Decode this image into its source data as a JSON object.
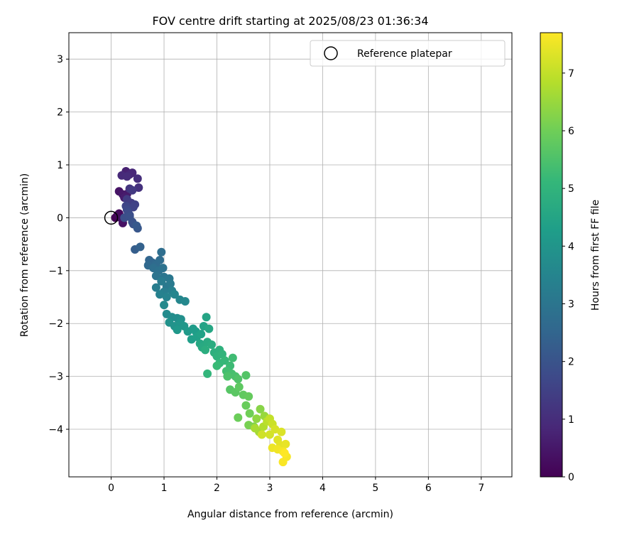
{
  "chart_data": {
    "type": "scatter",
    "title": "FOV centre drift starting at 2025/08/23 01:36:34",
    "xlabel": "Angular distance from reference (arcmin)",
    "ylabel": "Rotation from reference (arcmin)",
    "xlim": [
      -0.8,
      7.58
    ],
    "ylim": [
      -4.9,
      3.5
    ],
    "xticks": [
      0,
      1,
      2,
      3,
      4,
      5,
      6,
      7
    ],
    "yticks": [
      -4,
      -3,
      -2,
      -1,
      0,
      1,
      2,
      3
    ],
    "grid": true,
    "legend": {
      "position": "top-right",
      "entries": [
        "Reference platepar"
      ]
    },
    "reference_point": {
      "x": 0,
      "y": 0
    },
    "colorbar": {
      "label": "Hours from first FF file",
      "min": 0,
      "max": 7.7,
      "ticks": [
        0,
        1,
        2,
        3,
        4,
        5,
        6,
        7
      ],
      "colormap": "viridis"
    },
    "points": [
      [
        0.08,
        0.0,
        0.0
      ],
      [
        0.12,
        0.05,
        0.1
      ],
      [
        0.15,
        0.08,
        0.2
      ],
      [
        0.2,
        -0.02,
        0.3
      ],
      [
        0.22,
        -0.1,
        0.35
      ],
      [
        0.15,
        0.5,
        0.4
      ],
      [
        0.22,
        0.44,
        0.5
      ],
      [
        0.3,
        0.45,
        0.55
      ],
      [
        0.25,
        0.38,
        0.6
      ],
      [
        0.28,
        0.88,
        0.7
      ],
      [
        0.35,
        0.82,
        0.8
      ],
      [
        0.4,
        0.85,
        0.85
      ],
      [
        0.2,
        0.8,
        0.9
      ],
      [
        0.3,
        0.78,
        0.95
      ],
      [
        0.5,
        0.74,
        1.0
      ],
      [
        0.52,
        0.57,
        1.1
      ],
      [
        0.35,
        0.55,
        1.2
      ],
      [
        0.4,
        0.52,
        1.3
      ],
      [
        0.3,
        0.35,
        1.35
      ],
      [
        0.38,
        0.28,
        1.4
      ],
      [
        0.45,
        0.25,
        1.5
      ],
      [
        0.42,
        0.2,
        1.55
      ],
      [
        0.28,
        0.22,
        1.6
      ],
      [
        0.3,
        0.15,
        1.7
      ],
      [
        0.35,
        0.05,
        1.75
      ],
      [
        0.32,
        0.1,
        1.8
      ],
      [
        0.25,
        0.0,
        1.85
      ],
      [
        0.35,
        0.02,
        1.9
      ],
      [
        0.4,
        -0.08,
        1.95
      ],
      [
        0.42,
        -0.12,
        2.0
      ],
      [
        0.5,
        -0.2,
        2.1
      ],
      [
        0.48,
        -0.15,
        2.15
      ],
      [
        0.45,
        -0.6,
        2.3
      ],
      [
        0.55,
        -0.55,
        2.4
      ],
      [
        0.72,
        -0.8,
        2.5
      ],
      [
        0.78,
        -0.85,
        2.55
      ],
      [
        0.7,
        -0.9,
        2.6
      ],
      [
        0.85,
        -0.88,
        2.65
      ],
      [
        0.92,
        -0.8,
        2.7
      ],
      [
        0.95,
        -0.65,
        2.75
      ],
      [
        0.8,
        -0.95,
        2.8
      ],
      [
        0.9,
        -1.0,
        2.85
      ],
      [
        0.98,
        -0.95,
        2.9
      ],
      [
        0.85,
        -1.1,
        2.95
      ],
      [
        1.0,
        -1.12,
        3.0
      ],
      [
        1.1,
        -1.15,
        3.05
      ],
      [
        1.05,
        -1.3,
        3.1
      ],
      [
        1.12,
        -1.25,
        3.15
      ],
      [
        0.95,
        -1.2,
        3.2
      ],
      [
        0.85,
        -1.32,
        3.25
      ],
      [
        1.0,
        -1.4,
        3.3
      ],
      [
        1.15,
        -1.38,
        3.35
      ],
      [
        0.92,
        -1.45,
        3.4
      ],
      [
        1.05,
        -1.5,
        3.45
      ],
      [
        1.2,
        -1.45,
        3.5
      ],
      [
        1.3,
        -1.55,
        3.55
      ],
      [
        1.4,
        -1.58,
        3.6
      ],
      [
        1.0,
        -1.65,
        3.65
      ],
      [
        1.05,
        -1.82,
        3.7
      ],
      [
        1.15,
        -1.88,
        3.75
      ],
      [
        1.25,
        -1.9,
        3.8
      ],
      [
        1.32,
        -1.92,
        3.85
      ],
      [
        1.1,
        -1.98,
        3.9
      ],
      [
        1.2,
        -2.05,
        3.95
      ],
      [
        1.3,
        -2.0,
        4.0
      ],
      [
        1.38,
        -2.05,
        4.05
      ],
      [
        1.25,
        -2.12,
        4.1
      ],
      [
        1.45,
        -2.15,
        4.15
      ],
      [
        1.55,
        -2.1,
        4.2
      ],
      [
        1.6,
        -2.15,
        4.25
      ],
      [
        1.52,
        -2.3,
        4.3
      ],
      [
        1.62,
        -2.25,
        4.35
      ],
      [
        1.7,
        -2.2,
        4.4
      ],
      [
        1.75,
        -2.05,
        4.45
      ],
      [
        1.8,
        -1.88,
        4.5
      ],
      [
        1.85,
        -2.1,
        4.55
      ],
      [
        1.68,
        -2.38,
        4.6
      ],
      [
        1.72,
        -2.45,
        4.65
      ],
      [
        1.82,
        -2.35,
        4.7
      ],
      [
        1.9,
        -2.4,
        4.75
      ],
      [
        1.78,
        -2.5,
        4.8
      ],
      [
        1.95,
        -2.55,
        4.85
      ],
      [
        2.05,
        -2.5,
        4.9
      ],
      [
        2.0,
        -2.62,
        4.95
      ],
      [
        2.1,
        -2.58,
        5.0
      ],
      [
        1.82,
        -2.95,
        5.05
      ],
      [
        2.05,
        -2.75,
        5.1
      ],
      [
        2.15,
        -2.7,
        5.15
      ],
      [
        2.0,
        -2.8,
        5.2
      ],
      [
        2.25,
        -2.8,
        5.25
      ],
      [
        2.3,
        -2.65,
        5.3
      ],
      [
        2.18,
        -2.9,
        5.35
      ],
      [
        2.28,
        -2.95,
        5.4
      ],
      [
        2.35,
        -3.0,
        5.45
      ],
      [
        2.2,
        -3.0,
        5.5
      ],
      [
        2.4,
        -3.05,
        5.55
      ],
      [
        2.55,
        -2.98,
        5.6
      ],
      [
        2.25,
        -3.25,
        5.65
      ],
      [
        2.35,
        -3.3,
        5.7
      ],
      [
        2.42,
        -3.2,
        5.75
      ],
      [
        2.5,
        -3.35,
        5.8
      ],
      [
        2.6,
        -3.38,
        5.85
      ],
      [
        2.55,
        -3.55,
        5.9
      ],
      [
        2.4,
        -3.78,
        5.95
      ],
      [
        2.62,
        -3.7,
        6.0
      ],
      [
        2.6,
        -3.92,
        6.1
      ],
      [
        2.7,
        -3.95,
        6.2
      ],
      [
        2.82,
        -3.62,
        6.3
      ],
      [
        2.75,
        -3.8,
        6.4
      ],
      [
        2.9,
        -3.75,
        6.5
      ],
      [
        2.8,
        -4.05,
        6.6
      ],
      [
        2.72,
        -3.98,
        6.7
      ],
      [
        2.88,
        -3.95,
        6.8
      ],
      [
        2.95,
        -3.85,
        6.9
      ],
      [
        3.0,
        -3.8,
        7.0
      ],
      [
        3.05,
        -3.9,
        7.1
      ],
      [
        2.85,
        -4.1,
        7.15
      ],
      [
        3.0,
        -4.1,
        7.2
      ],
      [
        3.1,
        -4.0,
        7.25
      ],
      [
        3.22,
        -4.05,
        7.3
      ],
      [
        3.15,
        -4.2,
        7.35
      ],
      [
        3.2,
        -4.3,
        7.4
      ],
      [
        3.3,
        -4.28,
        7.45
      ],
      [
        3.05,
        -4.35,
        7.5
      ],
      [
        3.15,
        -4.38,
        7.55
      ],
      [
        3.25,
        -4.42,
        7.6
      ],
      [
        3.32,
        -4.52,
        7.62
      ],
      [
        3.25,
        -4.62,
        7.65
      ],
      [
        3.28,
        -4.45,
        7.7
      ]
    ]
  }
}
